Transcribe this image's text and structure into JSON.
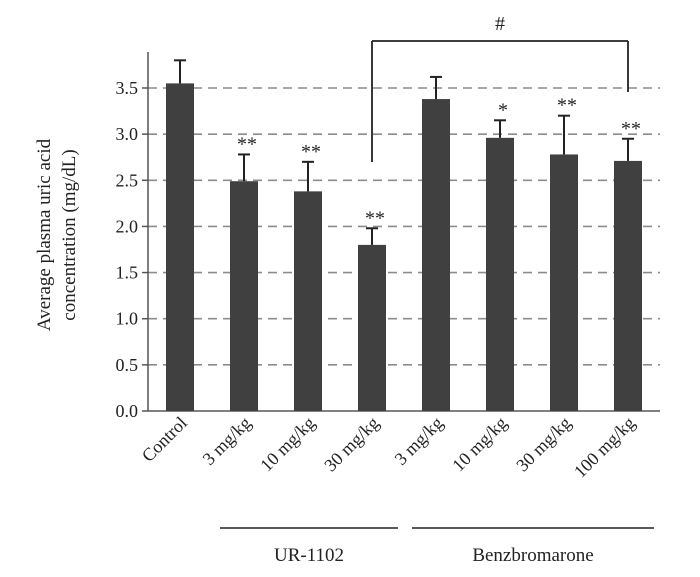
{
  "chart_data": {
    "type": "bar",
    "ylabel_lines": [
      "Average plasma uric acid",
      "concentration (mg/dL)"
    ],
    "ylim": [
      0,
      3.5
    ],
    "y_ticks": [
      "0.0",
      "0.5",
      "1.0",
      "1.5",
      "2.0",
      "2.5",
      "3.0",
      "3.5"
    ],
    "grid": "dashed horizontal",
    "categories": [
      "Control",
      "3 mg/kg",
      "10 mg/kg",
      "30 mg/kg",
      "3 mg/kg",
      "10 mg/kg",
      "30 mg/kg",
      "100 mg/kg"
    ],
    "values": [
      3.55,
      2.49,
      2.38,
      1.8,
      3.38,
      2.96,
      2.78,
      2.71
    ],
    "errors": [
      0.25,
      0.29,
      0.32,
      0.18,
      0.24,
      0.19,
      0.42,
      0.24
    ],
    "significance": [
      "",
      "**",
      "**",
      "**",
      "",
      "*",
      "**",
      "**"
    ],
    "groups": [
      {
        "label": "UR-1102",
        "from": 1,
        "to": 3
      },
      {
        "label": "Benzbromarone",
        "from": 4,
        "to": 7
      }
    ],
    "comparison": {
      "from": 3,
      "to": 7,
      "label": "#"
    },
    "colors": {
      "bar": "#404040",
      "axis": "#555555",
      "grid": "#8c8c8c"
    }
  }
}
